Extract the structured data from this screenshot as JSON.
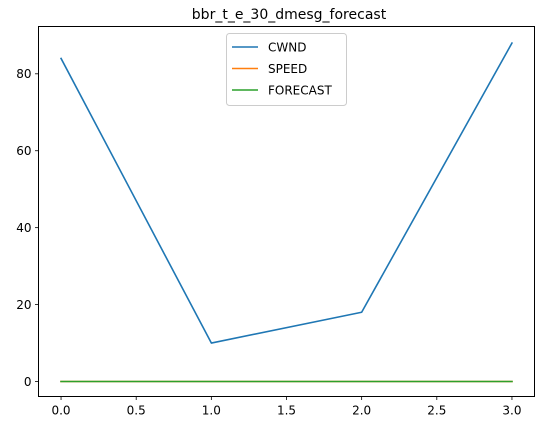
{
  "chart_data": {
    "type": "line",
    "title": "bbr_t_e_30_dmesg_forecast",
    "xlabel": "",
    "ylabel": "",
    "x": [
      0,
      1,
      2,
      3
    ],
    "xlim": [
      -0.15,
      3.15
    ],
    "ylim": [
      -3.9,
      92.3
    ],
    "xticks": [
      0.0,
      0.5,
      1.0,
      1.5,
      2.0,
      2.5,
      3.0
    ],
    "xtick_labels": [
      "0.0",
      "0.5",
      "1.0",
      "1.5",
      "2.0",
      "2.5",
      "3.0"
    ],
    "yticks": [
      0,
      20,
      40,
      60,
      80
    ],
    "ytick_labels": [
      "0",
      "20",
      "40",
      "60",
      "80"
    ],
    "grid": false,
    "legend_position": "top-center",
    "series": [
      {
        "name": "CWND",
        "values": [
          84,
          10,
          18,
          88
        ],
        "color": "#1f77b4"
      },
      {
        "name": "SPEED",
        "values": [
          0,
          0,
          0,
          0
        ],
        "color": "#ff7f0e"
      },
      {
        "name": "FORECAST",
        "values": [
          0,
          0,
          0,
          0
        ],
        "color": "#2ca02c"
      }
    ]
  }
}
